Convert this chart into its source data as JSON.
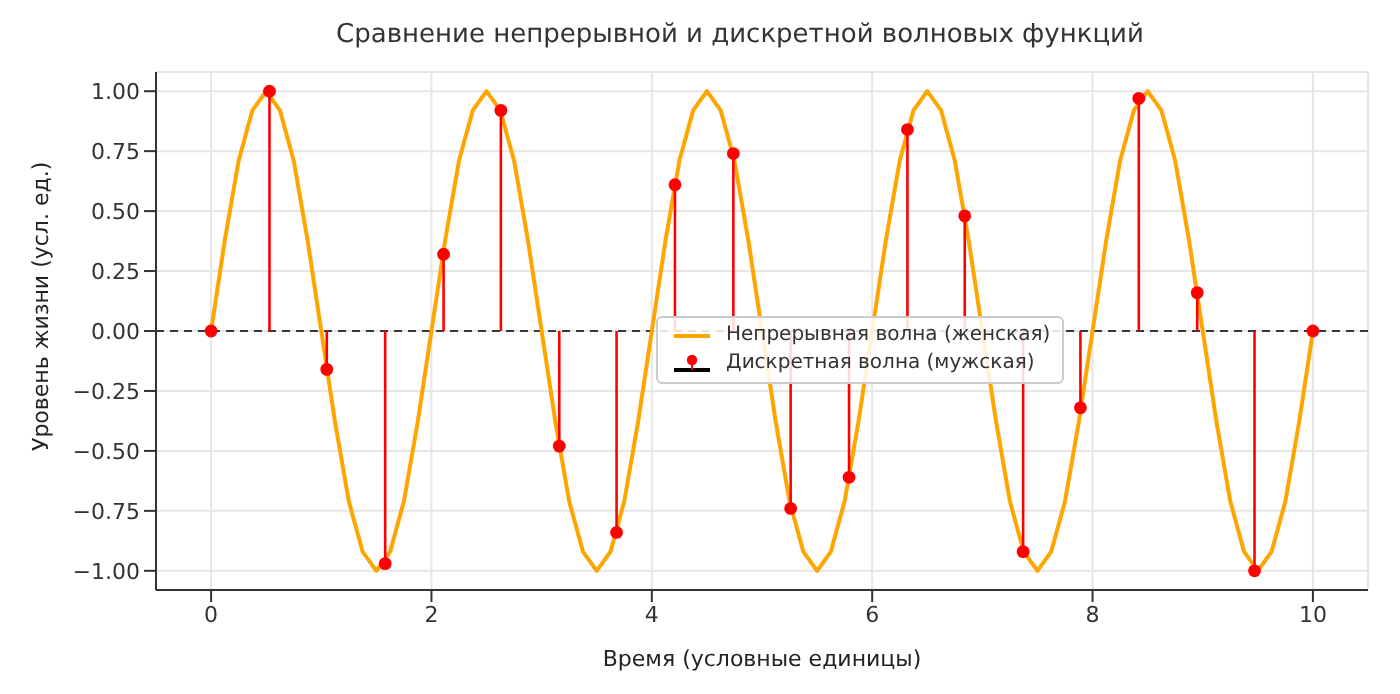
{
  "chart_data": {
    "type": "line",
    "title": "Сравнение непрерывной и дискретной волновых функций",
    "xlabel": "Время (условные единицы)",
    "ylabel": "Уровень жизни (усл. ед.)",
    "xlim": [
      -0.5,
      10.5
    ],
    "xticks": [
      0,
      2,
      4,
      6,
      8,
      10
    ],
    "ylim": [
      -1.08,
      1.08
    ],
    "yticks": [
      {
        "value": -1,
        "label": "−1.00"
      },
      {
        "value": -0.75,
        "label": "−0.75"
      },
      {
        "value": -0.5,
        "label": "−0.50"
      },
      {
        "value": -0.25,
        "label": "−0.25"
      },
      {
        "value": 0,
        "label": "0.00"
      },
      {
        "value": 0.25,
        "label": "0.25"
      },
      {
        "value": 0.5,
        "label": "0.50"
      },
      {
        "value": 0.75,
        "label": "0.75"
      },
      {
        "value": 1,
        "label": "1.00"
      }
    ],
    "grid": true,
    "legend": "center",
    "ref_lines": [
      {
        "axis": "y",
        "value": 0,
        "color": "#000000",
        "line_style": "dashed"
      }
    ],
    "series": [
      {
        "name": "Непрерывная волна (женская)",
        "color": "#ffa500",
        "marker": "none",
        "x": [
          0,
          0.125,
          0.25,
          0.375,
          0.5,
          0.625,
          0.75,
          0.875,
          1,
          1.125,
          1.25,
          1.375,
          1.5,
          1.625,
          1.75,
          1.875,
          2,
          2.125,
          2.25,
          2.375,
          2.5,
          2.625,
          2.75,
          2.875,
          3,
          3.125,
          3.25,
          3.375,
          3.5,
          3.625,
          3.75,
          3.875,
          4,
          4.125,
          4.25,
          4.375,
          4.5,
          4.625,
          4.75,
          4.875,
          5,
          5.125,
          5.25,
          5.375,
          5.5,
          5.625,
          5.75,
          5.875,
          6,
          6.125,
          6.25,
          6.375,
          6.5,
          6.625,
          6.75,
          6.875,
          7,
          7.125,
          7.25,
          7.375,
          7.5,
          7.625,
          7.75,
          7.875,
          8,
          8.125,
          8.25,
          8.375,
          8.5,
          8.625,
          8.75,
          8.875,
          9,
          9.125,
          9.25,
          9.375,
          9.5,
          9.625,
          9.75,
          9.875,
          10
        ],
        "values": [
          0,
          0.38,
          0.71,
          0.92,
          1,
          0.92,
          0.71,
          0.38,
          0,
          -0.38,
          -0.71,
          -0.92,
          -1,
          -0.92,
          -0.71,
          -0.38,
          0,
          0.38,
          0.71,
          0.92,
          1,
          0.92,
          0.71,
          0.38,
          0,
          -0.38,
          -0.71,
          -0.92,
          -1,
          -0.92,
          -0.71,
          -0.38,
          0,
          0.38,
          0.71,
          0.92,
          1,
          0.92,
          0.71,
          0.38,
          0,
          -0.38,
          -0.71,
          -0.92,
          -1,
          -0.92,
          -0.71,
          -0.38,
          0,
          0.38,
          0.71,
          0.92,
          1,
          0.92,
          0.71,
          0.38,
          0,
          -0.38,
          -0.71,
          -0.92,
          -1,
          -0.92,
          -0.71,
          -0.38,
          0,
          0.38,
          0.71,
          0.92,
          1,
          0.92,
          0.71,
          0.38,
          0,
          -0.38,
          -0.71,
          -0.92,
          -1,
          -0.92,
          -0.71,
          -0.38,
          0
        ]
      },
      {
        "name": "Дискретная волна (мужская)",
        "type": "lollipop",
        "color": "#ff0000",
        "marker": "circle",
        "x": [
          0,
          0.53,
          1.05,
          1.58,
          2.11,
          2.63,
          3.16,
          3.68,
          4.21,
          4.74,
          5.26,
          5.79,
          6.32,
          6.84,
          7.37,
          7.89,
          8.42,
          8.95,
          9.47,
          10
        ],
        "values": [
          0,
          1,
          -0.16,
          -0.97,
          0.32,
          0.92,
          -0.48,
          -0.84,
          0.61,
          0.74,
          -0.74,
          -0.61,
          0.84,
          0.48,
          -0.92,
          -0.32,
          0.97,
          0.16,
          -1,
          0
        ]
      }
    ]
  }
}
